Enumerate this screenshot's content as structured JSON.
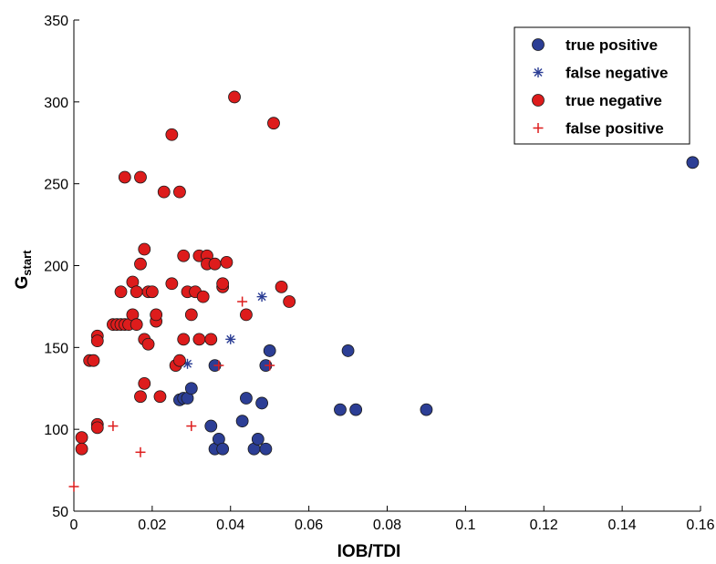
{
  "chart_data": {
    "type": "scatter",
    "xlabel": "IOB/TDI",
    "ylabel": {
      "main": "G",
      "sub": "start"
    },
    "xlim": [
      0,
      0.16
    ],
    "ylim": [
      50,
      350
    ],
    "xticks": [
      0,
      0.02,
      0.04,
      0.06,
      0.08,
      0.1,
      0.12,
      0.14,
      0.16
    ],
    "xtick_labels": [
      "0",
      "0.02",
      "0.04",
      "0.06",
      "0.08",
      "0.1",
      "0.12",
      "0.14",
      "0.16"
    ],
    "yticks": [
      50,
      100,
      150,
      200,
      250,
      300,
      350
    ],
    "ytick_labels": [
      "50",
      "100",
      "150",
      "200",
      "250",
      "300",
      "350"
    ],
    "grid": false,
    "legend_position": "top-right",
    "series": [
      {
        "name": "true positive",
        "marker": "circle",
        "color": "#2c3e95",
        "points": [
          [
            0.027,
            118
          ],
          [
            0.028,
            119
          ],
          [
            0.029,
            119
          ],
          [
            0.03,
            125
          ],
          [
            0.035,
            102
          ],
          [
            0.036,
            88
          ],
          [
            0.037,
            94
          ],
          [
            0.038,
            88
          ],
          [
            0.036,
            139
          ],
          [
            0.044,
            119
          ],
          [
            0.043,
            105
          ],
          [
            0.046,
            88
          ],
          [
            0.047,
            94
          ],
          [
            0.048,
            116
          ],
          [
            0.049,
            88
          ],
          [
            0.049,
            139
          ],
          [
            0.05,
            148
          ],
          [
            0.068,
            112
          ],
          [
            0.07,
            148
          ],
          [
            0.072,
            112
          ],
          [
            0.09,
            112
          ],
          [
            0.158,
            263
          ]
        ]
      },
      {
        "name": "false negative",
        "marker": "asterisk",
        "color": "#2c3e95",
        "points": [
          [
            0.029,
            140
          ],
          [
            0.04,
            155
          ],
          [
            0.048,
            181
          ]
        ]
      },
      {
        "name": "true negative",
        "marker": "circle",
        "color": "#dd1c1c",
        "points": [
          [
            0.002,
            95
          ],
          [
            0.002,
            88
          ],
          [
            0.004,
            142
          ],
          [
            0.005,
            142
          ],
          [
            0.006,
            157
          ],
          [
            0.006,
            154
          ],
          [
            0.006,
            103
          ],
          [
            0.006,
            101
          ],
          [
            0.01,
            164
          ],
          [
            0.011,
            164
          ],
          [
            0.012,
            164
          ],
          [
            0.013,
            164
          ],
          [
            0.014,
            164
          ],
          [
            0.012,
            184
          ],
          [
            0.013,
            254
          ],
          [
            0.015,
            190
          ],
          [
            0.015,
            170
          ],
          [
            0.016,
            184
          ],
          [
            0.016,
            164
          ],
          [
            0.017,
            254
          ],
          [
            0.017,
            120
          ],
          [
            0.017,
            201
          ],
          [
            0.018,
            155
          ],
          [
            0.018,
            128
          ],
          [
            0.018,
            210
          ],
          [
            0.019,
            184
          ],
          [
            0.019,
            152
          ],
          [
            0.02,
            184
          ],
          [
            0.021,
            166
          ],
          [
            0.021,
            170
          ],
          [
            0.022,
            120
          ],
          [
            0.023,
            245
          ],
          [
            0.025,
            189
          ],
          [
            0.025,
            280
          ],
          [
            0.026,
            139
          ],
          [
            0.027,
            245
          ],
          [
            0.027,
            142
          ],
          [
            0.028,
            206
          ],
          [
            0.028,
            155
          ],
          [
            0.029,
            184
          ],
          [
            0.03,
            170
          ],
          [
            0.031,
            184
          ],
          [
            0.032,
            155
          ],
          [
            0.032,
            206
          ],
          [
            0.033,
            181
          ],
          [
            0.034,
            206
          ],
          [
            0.034,
            201
          ],
          [
            0.035,
            155
          ],
          [
            0.036,
            201
          ],
          [
            0.038,
            187
          ],
          [
            0.038,
            189
          ],
          [
            0.039,
            202
          ],
          [
            0.041,
            303
          ],
          [
            0.044,
            170
          ],
          [
            0.051,
            287
          ],
          [
            0.053,
            187
          ],
          [
            0.055,
            178
          ]
        ]
      },
      {
        "name": "false positive",
        "marker": "plus",
        "color": "#dd1c1c",
        "points": [
          [
            0.0,
            65
          ],
          [
            0.01,
            102
          ],
          [
            0.017,
            86
          ],
          [
            0.03,
            102
          ],
          [
            0.037,
            139
          ],
          [
            0.043,
            178
          ],
          [
            0.05,
            139
          ]
        ]
      }
    ]
  }
}
